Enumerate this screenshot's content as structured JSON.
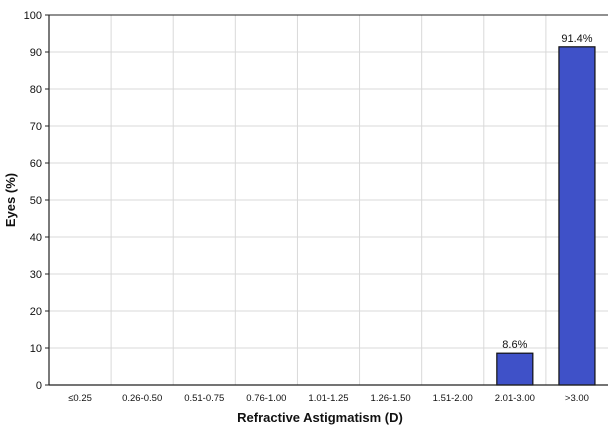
{
  "chart_data": {
    "type": "bar",
    "categories": [
      "≤0.25",
      "0.26-0.50",
      "0.51-0.75",
      "0.76-1.00",
      "1.01-1.25",
      "1.26-1.50",
      "1.51-2.00",
      "2.01-3.00",
      ">3.00"
    ],
    "values": [
      0,
      0,
      0,
      0,
      0,
      0,
      0,
      8.6,
      91.4
    ],
    "data_labels": [
      "",
      "",
      "",
      "",
      "",
      "",
      "",
      "8.6%",
      "91.4%"
    ],
    "title": "",
    "xlabel": "Refractive Astigmatism (D)",
    "ylabel": "Eyes (%)",
    "ylim": [
      0,
      100
    ],
    "yticks": [
      "0",
      "10",
      "20",
      "30",
      "40",
      "50",
      "60",
      "70",
      "80",
      "90",
      "100"
    ],
    "grid": true,
    "legend": "none",
    "colors": {
      "bar_fill": "#3f51c8",
      "bar_stroke": "#111111",
      "grid": "#d9d9d9",
      "axis": "#222222",
      "text": "#111111"
    }
  }
}
